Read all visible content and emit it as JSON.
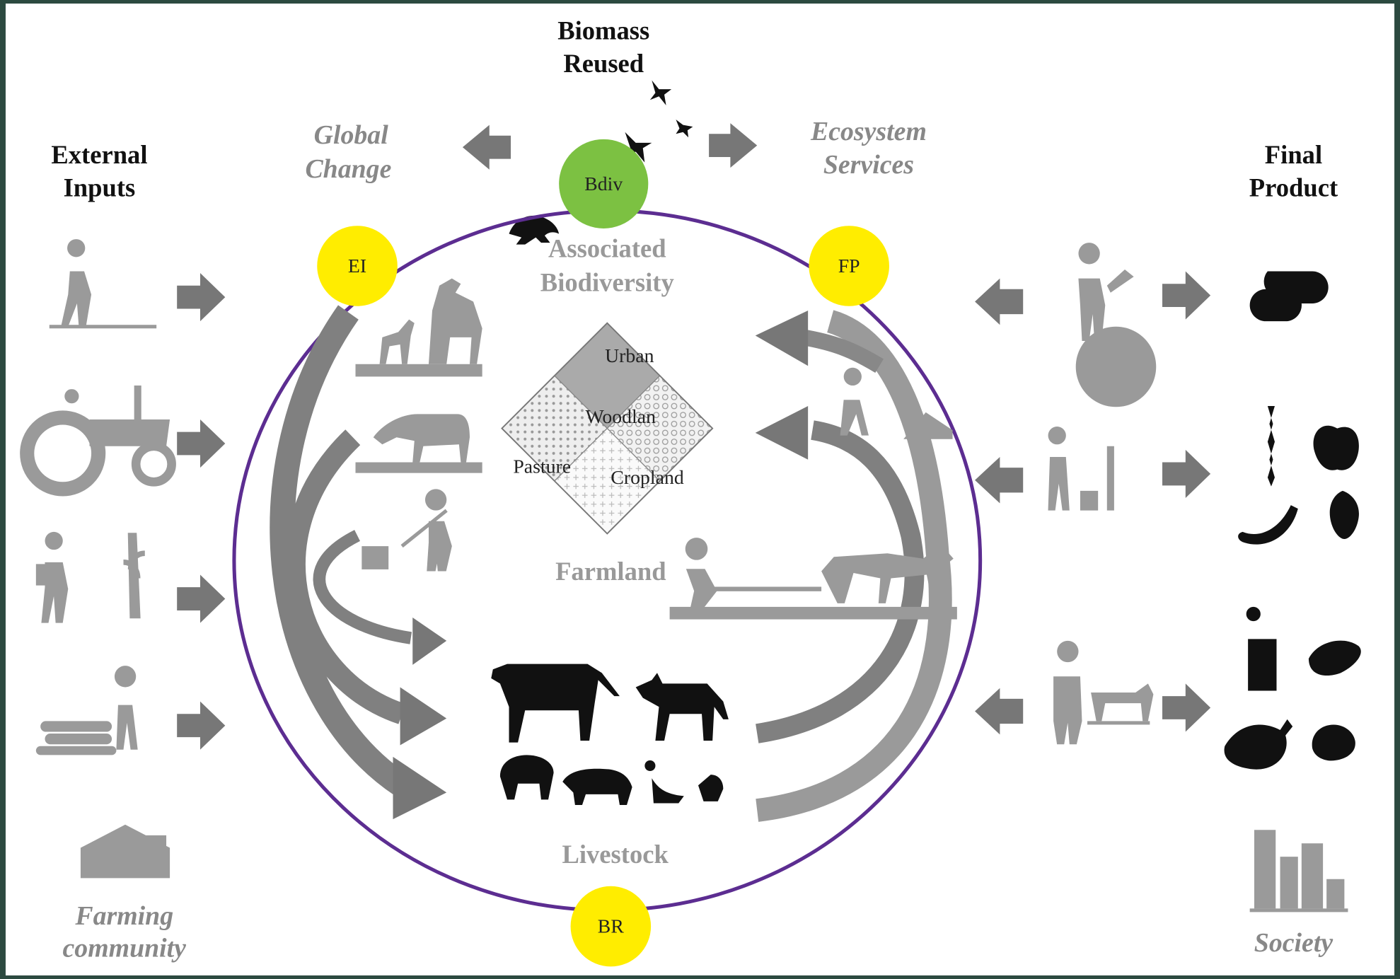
{
  "top": {
    "biomass_reused": [
      "Biomass",
      "Reused"
    ],
    "global_change": [
      "Global",
      "Change"
    ],
    "ecosystem_services": [
      "Ecosystem",
      "Services"
    ]
  },
  "left": {
    "title": [
      "External",
      "Inputs"
    ],
    "footer": [
      "Farming",
      "community"
    ]
  },
  "right": {
    "title": [
      "Final",
      "Product"
    ],
    "footer": [
      "Society"
    ]
  },
  "nodes": [
    {
      "label": "Bdiv"
    },
    {
      "label": "EI"
    },
    {
      "label": "FP"
    },
    {
      "label": "BR"
    }
  ],
  "circle": {
    "associated": [
      "Associated",
      "Biodiversity"
    ],
    "land_uses": [
      "Urban",
      "Woodlan",
      "Pasture",
      "Cropland"
    ],
    "farmland": "Farmland",
    "livestock": "Livestock"
  }
}
